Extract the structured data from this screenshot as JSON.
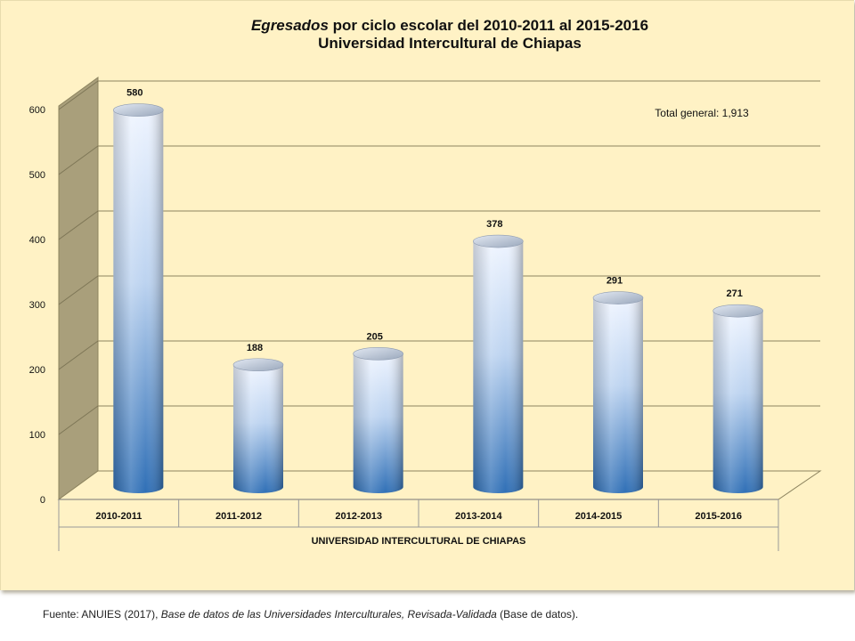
{
  "chart_data": {
    "type": "bar",
    "title_italic": "Egresados",
    "title_rest": " por ciclo escolar del 2010-2011 al 2015-2016",
    "subtitle": "Universidad Intercultural de Chiapas",
    "categories": [
      "2010-2011",
      "2011-2012",
      "2012-2013",
      "2013-2014",
      "2014-2015",
      "2015-2016"
    ],
    "values": [
      580,
      188,
      205,
      378,
      291,
      271
    ],
    "data_labels": [
      "580",
      "188",
      "205",
      "378",
      "291",
      "271"
    ],
    "y_ticks": [
      "0",
      "100",
      "200",
      "300",
      "400",
      "500",
      "600"
    ],
    "ylim": [
      0,
      600
    ],
    "xlabel": "UNIVERSIDAD INTERCULTURAL DE CHIAPAS",
    "annotation": "Total general: 1,913",
    "grid": true,
    "colors": {
      "bar_top": "#eef4ff",
      "bar_bottom": "#2f6fb6",
      "wall": "#a99f7b",
      "plot_bg": "#fff2c5"
    }
  },
  "source_note": {
    "prefix": "Fuente: ANUIES (2017), ",
    "italic": "Base de datos de las Universidades  Interculturales, Revisada-Validada",
    "suffix": "  (Base de datos)."
  }
}
